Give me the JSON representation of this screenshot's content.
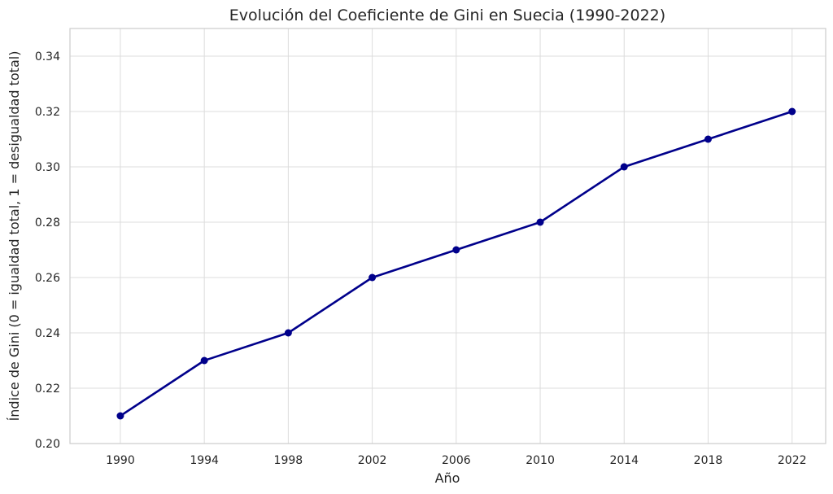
{
  "chart_data": {
    "type": "line",
    "title": "Evolución del Coeficiente de Gini en Suecia (1990-2022)",
    "xlabel": "Año",
    "ylabel": "Índice de Gini (0 = igualdad total, 1 = desigualdad total)",
    "x": [
      1990,
      1994,
      1998,
      2002,
      2006,
      2010,
      2014,
      2018,
      2022
    ],
    "x_tick_labels": [
      "1990",
      "1994",
      "1998",
      "2002",
      "2006",
      "2010",
      "2014",
      "2018",
      "2022"
    ],
    "y_tick_values": [
      0.2,
      0.22,
      0.24,
      0.26,
      0.28,
      0.3,
      0.32,
      0.34
    ],
    "y_tick_labels": [
      "0.20",
      "0.22",
      "0.24",
      "0.26",
      "0.28",
      "0.30",
      "0.32",
      "0.34"
    ],
    "xlim": [
      1987.6,
      2023.6
    ],
    "ylim": [
      0.2,
      0.35
    ],
    "grid": true,
    "series": [
      {
        "values": [
          0.21,
          0.23,
          0.24,
          0.26,
          0.27,
          0.28,
          0.3,
          0.31,
          0.32
        ],
        "color": "#00008b",
        "marker": "circle"
      }
    ]
  }
}
